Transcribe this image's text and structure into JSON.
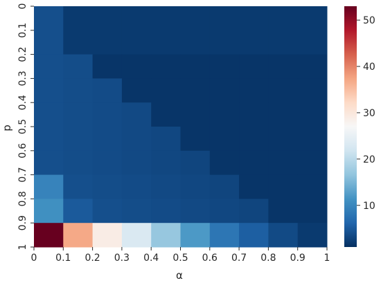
{
  "chart_data": {
    "type": "heatmap",
    "title": "",
    "xlabel": "α",
    "ylabel": "p",
    "x_ticks": [
      "0",
      "0.1",
      "0.2",
      "0.3",
      "0.4",
      "0.5",
      "0.6",
      "0.7",
      "0.8",
      "0.9",
      "1"
    ],
    "y_ticks": [
      "0",
      "0.1",
      "0.2",
      "0.3",
      "0.4",
      "0.5",
      "0.6",
      "0.7",
      "0.8",
      "0.9",
      "1"
    ],
    "colorbar": {
      "ticks": [
        "10",
        "20",
        "30",
        "40",
        "50"
      ],
      "range": [
        1,
        53
      ],
      "colormap": "RdBu_r"
    },
    "values": [
      [
        4.0,
        2.0,
        2.0,
        2.0,
        2.0,
        2.0,
        2.0,
        2.0,
        2.0,
        2.0
      ],
      [
        4.0,
        2.0,
        2.0,
        2.0,
        2.0,
        2.0,
        2.0,
        2.0,
        2.0,
        2.0
      ],
      [
        4.0,
        3.8,
        1.5,
        1.5,
        1.5,
        1.5,
        1.5,
        1.5,
        1.5,
        1.5
      ],
      [
        4.0,
        3.8,
        3.6,
        1.5,
        1.5,
        1.5,
        1.5,
        1.5,
        1.5,
        1.5
      ],
      [
        4.0,
        3.8,
        3.6,
        3.4,
        1.5,
        1.5,
        1.5,
        1.5,
        1.5,
        1.5
      ],
      [
        4.0,
        3.8,
        3.6,
        3.4,
        3.2,
        1.5,
        1.5,
        1.5,
        1.5,
        1.5
      ],
      [
        4.0,
        3.8,
        3.6,
        3.4,
        3.2,
        3.0,
        1.5,
        1.5,
        1.5,
        1.5
      ],
      [
        9.5,
        4.0,
        3.8,
        3.6,
        3.4,
        3.2,
        3.0,
        1.5,
        1.5,
        1.5
      ],
      [
        11.0,
        5.0,
        4.0,
        3.8,
        3.6,
        3.4,
        3.2,
        3.0,
        1.5,
        1.5
      ],
      [
        53.0,
        37.0,
        29.0,
        23.0,
        17.0,
        12.0,
        8.0,
        5.5,
        3.5,
        2.0
      ]
    ]
  }
}
